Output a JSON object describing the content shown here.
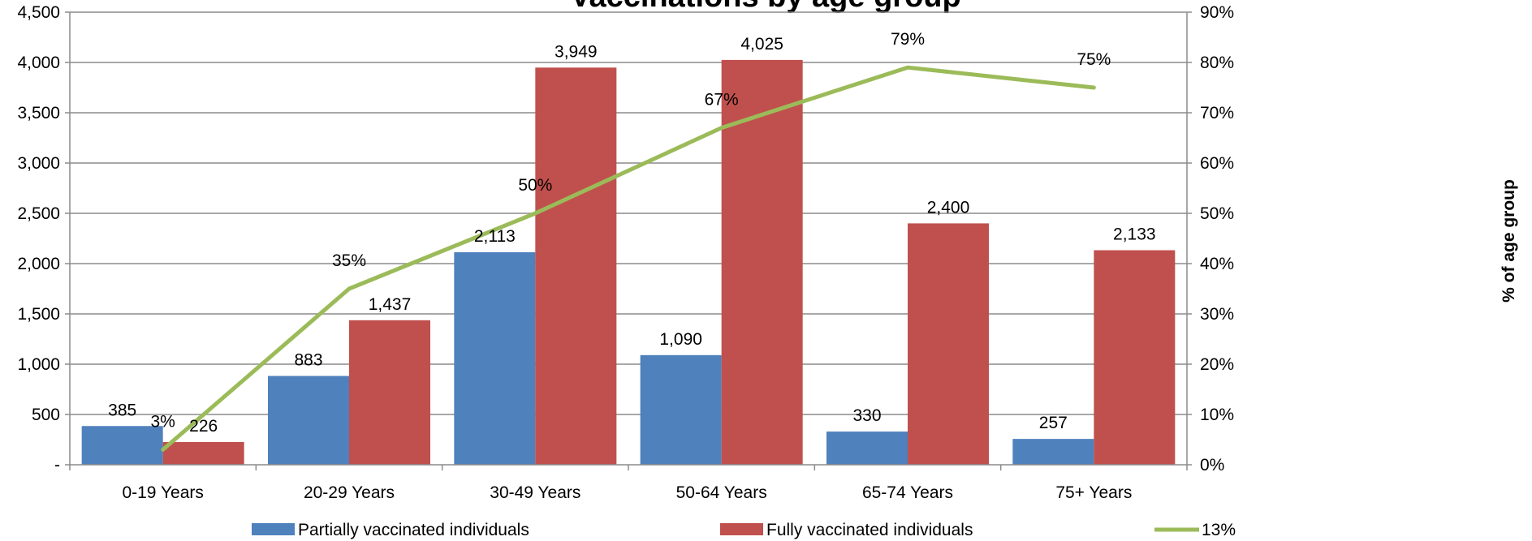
{
  "chart_data": {
    "type": "bar",
    "title": "Vaccinations by age group",
    "categories": [
      "0-19 Years",
      "20-29 Years",
      "30-49 Years",
      "50-64 Years",
      "65-74 Years",
      "75+ Years"
    ],
    "series": [
      {
        "name": "Partially vaccinated individuals",
        "kind": "bar",
        "axis": "left",
        "color": "#4F81BD",
        "values": [
          385,
          883,
          2113,
          1090,
          330,
          257
        ],
        "labels": [
          "385",
          "883",
          "2,113",
          "1,090",
          "330",
          "257"
        ]
      },
      {
        "name": "Fully vaccinated individuals",
        "kind": "bar",
        "axis": "left",
        "color": "#C0504D",
        "values": [
          226,
          1437,
          3949,
          4025,
          2400,
          2133
        ],
        "labels": [
          "226",
          "1,437",
          "3,949",
          "4,025",
          "2,400",
          "2,133"
        ]
      },
      {
        "name": "13%",
        "kind": "line",
        "axis": "right",
        "color": "#9BBB59",
        "values": [
          3,
          35,
          50,
          67,
          79,
          75
        ],
        "labels": [
          "3%",
          "35%",
          "50%",
          "67%",
          "79%",
          "75%"
        ]
      }
    ],
    "ylim": [
      0,
      4500
    ],
    "y_ticks": [
      "-",
      "500",
      "1,000",
      "1,500",
      "2,000",
      "2,500",
      "3,000",
      "3,500",
      "4,000",
      "4,500"
    ],
    "y2lim": [
      0,
      90
    ],
    "y2_ticks": [
      "0%",
      "10%",
      "20%",
      "30%",
      "40%",
      "50%",
      "60%",
      "70%",
      "80%",
      "90%"
    ],
    "y2label": "% of age group",
    "grid": true,
    "legend_position": "bottom"
  }
}
